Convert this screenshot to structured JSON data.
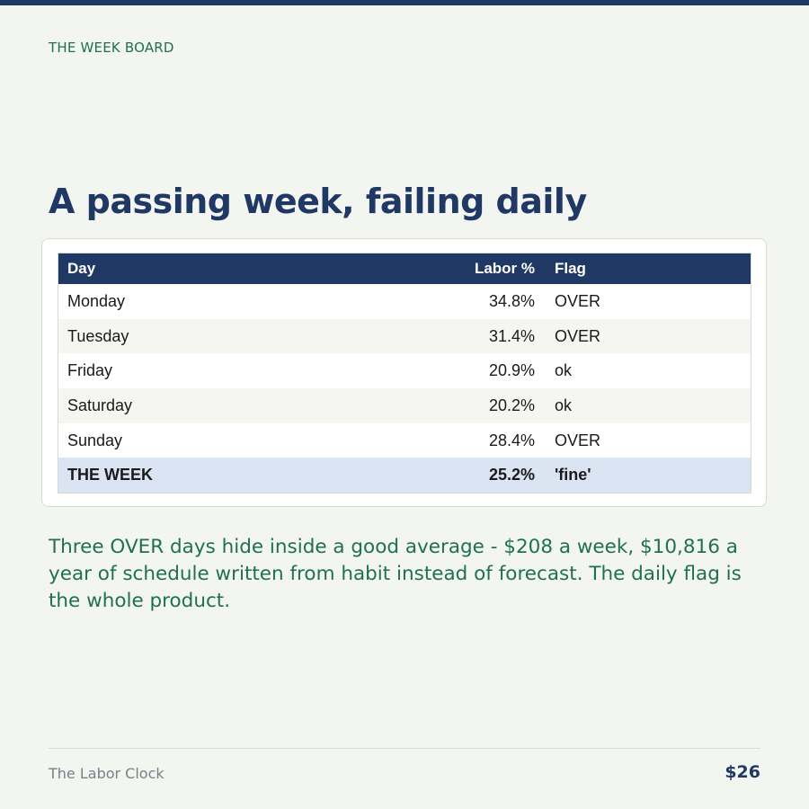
{
  "header": {
    "kicker": "THE WEEK BOARD",
    "title": "A passing week, failing daily"
  },
  "table": {
    "columns": [
      "Day",
      "Labor %",
      "Flag"
    ],
    "rows": [
      [
        "Monday",
        "34.8%",
        "OVER"
      ],
      [
        "Tuesday",
        "31.4%",
        "OVER"
      ],
      [
        "Friday",
        "20.9%",
        "ok"
      ],
      [
        "Saturday",
        "20.2%",
        "ok"
      ],
      [
        "Sunday",
        "28.4%",
        "OVER"
      ],
      [
        "THE WEEK",
        "25.2%",
        "'fine'"
      ]
    ]
  },
  "caption": "Three OVER days hide inside a good average - $208 a week, $10,816 a year of schedule written from habit instead of forecast. The daily flag is the whole product.",
  "footer": {
    "brand": "The Labor Clock",
    "price": "$26"
  }
}
